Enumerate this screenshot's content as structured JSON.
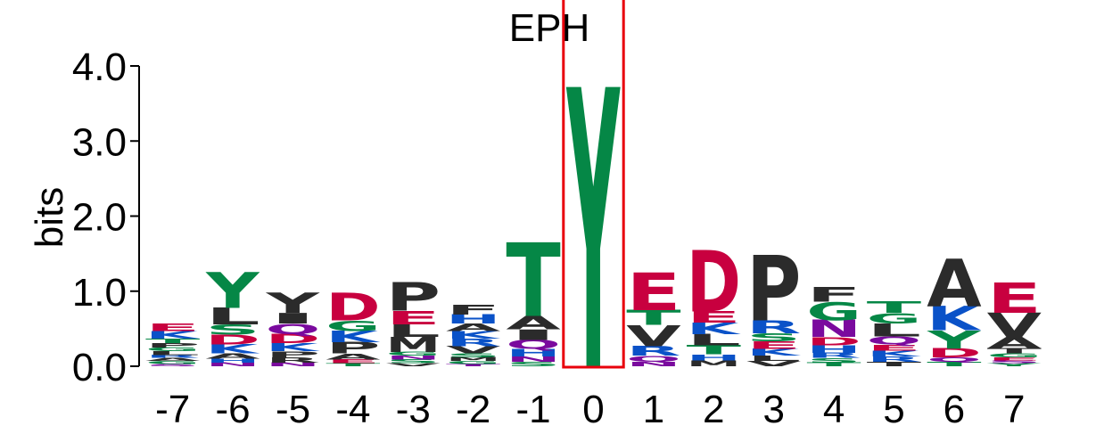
{
  "chart_data": {
    "type": "sequence-logo",
    "title": "EPH",
    "ylabel": "bits",
    "ylim": [
      0,
      4
    ],
    "y_ticks": [
      "0.0",
      "1.0",
      "2.0",
      "3.0",
      "4.0"
    ],
    "highlighted_position": 0,
    "highlight_color": "#e8000b",
    "colors": {
      "green": "#058746",
      "red": "#c8003f",
      "blue": "#0a52c8",
      "purple": "#7a0a9e",
      "black": "#2b2b2b"
    },
    "positions": [
      {
        "label": "-7",
        "stack": [
          {
            "letter": "S",
            "height": 0.03,
            "color": "purple"
          },
          {
            "letter": "G",
            "height": 0.04,
            "color": "green"
          },
          {
            "letter": "A",
            "height": 0.04,
            "color": "black"
          },
          {
            "letter": "R",
            "height": 0.04,
            "color": "blue"
          },
          {
            "letter": "L",
            "height": 0.05,
            "color": "black"
          },
          {
            "letter": "G",
            "height": 0.05,
            "color": "green"
          },
          {
            "letter": "P",
            "height": 0.06,
            "color": "black"
          },
          {
            "letter": "T",
            "height": 0.06,
            "color": "green"
          },
          {
            "letter": "K",
            "height": 0.1,
            "color": "blue"
          },
          {
            "letter": "E",
            "height": 0.1,
            "color": "red"
          }
        ]
      },
      {
        "label": "-6",
        "stack": [
          {
            "letter": "N",
            "height": 0.05,
            "color": "purple"
          },
          {
            "letter": "H",
            "height": 0.05,
            "color": "blue"
          },
          {
            "letter": "A",
            "height": 0.07,
            "color": "black"
          },
          {
            "letter": "K",
            "height": 0.12,
            "color": "blue"
          },
          {
            "letter": "D",
            "height": 0.13,
            "color": "red"
          },
          {
            "letter": "S",
            "height": 0.14,
            "color": "green"
          },
          {
            "letter": "L",
            "height": 0.22,
            "color": "black"
          },
          {
            "letter": "Y",
            "height": 0.48,
            "color": "green"
          }
        ]
      },
      {
        "label": "-5",
        "stack": [
          {
            "letter": "N",
            "height": 0.05,
            "color": "purple"
          },
          {
            "letter": "R",
            "height": 0.07,
            "color": "black"
          },
          {
            "letter": "P",
            "height": 0.08,
            "color": "black"
          },
          {
            "letter": "K",
            "height": 0.11,
            "color": "blue"
          },
          {
            "letter": "D",
            "height": 0.12,
            "color": "red"
          },
          {
            "letter": "Q",
            "height": 0.14,
            "color": "purple"
          },
          {
            "letter": "I",
            "height": 0.14,
            "color": "black"
          },
          {
            "letter": "Y",
            "height": 0.27,
            "color": "black"
          }
        ]
      },
      {
        "label": "-4",
        "stack": [
          {
            "letter": "T",
            "height": 0.04,
            "color": "green"
          },
          {
            "letter": "E",
            "height": 0.05,
            "color": "red"
          },
          {
            "letter": "A",
            "height": 0.08,
            "color": "black"
          },
          {
            "letter": "P",
            "height": 0.15,
            "color": "black"
          },
          {
            "letter": "K",
            "height": 0.15,
            "color": "blue"
          },
          {
            "letter": "G",
            "height": 0.14,
            "color": "green"
          },
          {
            "letter": "D",
            "height": 0.37,
            "color": "red"
          }
        ]
      },
      {
        "label": "-3",
        "stack": [
          {
            "letter": "V",
            "height": 0.04,
            "color": "black"
          },
          {
            "letter": "S",
            "height": 0.05,
            "color": "green"
          },
          {
            "letter": "N",
            "height": 0.05,
            "color": "purple"
          },
          {
            "letter": "G",
            "height": 0.05,
            "color": "green"
          },
          {
            "letter": "M",
            "height": 0.2,
            "color": "black"
          },
          {
            "letter": "L",
            "height": 0.17,
            "color": "black"
          },
          {
            "letter": "E",
            "height": 0.18,
            "color": "red"
          },
          {
            "letter": "P",
            "height": 0.38,
            "color": "black"
          }
        ]
      },
      {
        "label": "-2",
        "stack": [
          {
            "letter": "T",
            "height": 0.03,
            "color": "purple"
          },
          {
            "letter": "G",
            "height": 0.04,
            "color": "green"
          },
          {
            "letter": "M",
            "height": 0.05,
            "color": "black"
          },
          {
            "letter": "S",
            "height": 0.05,
            "color": "green"
          },
          {
            "letter": "V",
            "height": 0.1,
            "color": "black"
          },
          {
            "letter": "R",
            "height": 0.1,
            "color": "blue"
          },
          {
            "letter": "K",
            "height": 0.1,
            "color": "blue"
          },
          {
            "letter": "A",
            "height": 0.1,
            "color": "black"
          },
          {
            "letter": "H",
            "height": 0.12,
            "color": "blue"
          },
          {
            "letter": "F",
            "height": 0.13,
            "color": "black"
          }
        ]
      },
      {
        "label": "-1",
        "stack": [
          {
            "letter": "S",
            "height": 0.06,
            "color": "green"
          },
          {
            "letter": "N",
            "height": 0.07,
            "color": "purple"
          },
          {
            "letter": "H",
            "height": 0.1,
            "color": "blue"
          },
          {
            "letter": "Q",
            "height": 0.12,
            "color": "purple"
          },
          {
            "letter": "I",
            "height": 0.14,
            "color": "black"
          },
          {
            "letter": "A",
            "height": 0.18,
            "color": "black"
          },
          {
            "letter": "T",
            "height": 0.98,
            "color": "green"
          }
        ]
      },
      {
        "label": "0",
        "stack": [
          {
            "letter": "Y",
            "height": 3.72,
            "color": "green"
          }
        ]
      },
      {
        "label": "1",
        "stack": [
          {
            "letter": "N",
            "height": 0.06,
            "color": "purple"
          },
          {
            "letter": "Q",
            "height": 0.08,
            "color": "purple"
          },
          {
            "letter": "R",
            "height": 0.13,
            "color": "blue"
          },
          {
            "letter": "V",
            "height": 0.28,
            "color": "black"
          },
          {
            "letter": "T",
            "height": 0.2,
            "color": "green"
          },
          {
            "letter": "E",
            "height": 0.5,
            "color": "red"
          }
        ]
      },
      {
        "label": "2",
        "stack": [
          {
            "letter": "M",
            "height": 0.08,
            "color": "black"
          },
          {
            "letter": "H",
            "height": 0.08,
            "color": "blue"
          },
          {
            "letter": "T",
            "height": 0.12,
            "color": "green"
          },
          {
            "letter": "L",
            "height": 0.15,
            "color": "black"
          },
          {
            "letter": "K",
            "height": 0.15,
            "color": "blue"
          },
          {
            "letter": "E",
            "height": 0.15,
            "color": "red"
          },
          {
            "letter": "D",
            "height": 0.82,
            "color": "red"
          }
        ]
      },
      {
        "label": "3",
        "stack": [
          {
            "letter": "V",
            "height": 0.07,
            "color": "black"
          },
          {
            "letter": "L",
            "height": 0.07,
            "color": "black"
          },
          {
            "letter": "K",
            "height": 0.09,
            "color": "blue"
          },
          {
            "letter": "E",
            "height": 0.1,
            "color": "red"
          },
          {
            "letter": "S",
            "height": 0.11,
            "color": "green"
          },
          {
            "letter": "R",
            "height": 0.17,
            "color": "blue"
          },
          {
            "letter": "P",
            "height": 0.87,
            "color": "black"
          }
        ]
      },
      {
        "label": "4",
        "stack": [
          {
            "letter": "T",
            "height": 0.05,
            "color": "green"
          },
          {
            "letter": "S",
            "height": 0.06,
            "color": "green"
          },
          {
            "letter": "R",
            "height": 0.07,
            "color": "blue"
          },
          {
            "letter": "H",
            "height": 0.1,
            "color": "blue"
          },
          {
            "letter": "D",
            "height": 0.11,
            "color": "red"
          },
          {
            "letter": "N",
            "height": 0.23,
            "color": "purple"
          },
          {
            "letter": "G",
            "height": 0.24,
            "color": "green"
          },
          {
            "letter": "F",
            "height": 0.19,
            "color": "black"
          }
        ]
      },
      {
        "label": "5",
        "stack": [
          {
            "letter": "T",
            "height": 0.06,
            "color": "black"
          },
          {
            "letter": "R",
            "height": 0.07,
            "color": "blue"
          },
          {
            "letter": "K",
            "height": 0.08,
            "color": "blue"
          },
          {
            "letter": "E",
            "height": 0.08,
            "color": "red"
          },
          {
            "letter": "Q",
            "height": 0.11,
            "color": "purple"
          },
          {
            "letter": "L",
            "height": 0.17,
            "color": "black"
          },
          {
            "letter": "G",
            "height": 0.14,
            "color": "green"
          },
          {
            "letter": "T",
            "height": 0.15,
            "color": "green"
          }
        ]
      },
      {
        "label": "6",
        "stack": [
          {
            "letter": "T",
            "height": 0.06,
            "color": "green"
          },
          {
            "letter": "Q",
            "height": 0.06,
            "color": "purple"
          },
          {
            "letter": "D",
            "height": 0.12,
            "color": "red"
          },
          {
            "letter": "Y",
            "height": 0.24,
            "color": "green"
          },
          {
            "letter": "K",
            "height": 0.32,
            "color": "blue"
          },
          {
            "letter": "A",
            "height": 0.63,
            "color": "black"
          }
        ]
      },
      {
        "label": "7",
        "stack": [
          {
            "letter": "Y",
            "height": 0.04,
            "color": "green"
          },
          {
            "letter": "S",
            "height": 0.04,
            "color": "purple"
          },
          {
            "letter": "E",
            "height": 0.04,
            "color": "red"
          },
          {
            "letter": "G",
            "height": 0.05,
            "color": "green"
          },
          {
            "letter": "T",
            "height": 0.07,
            "color": "black"
          },
          {
            "letter": "A",
            "height": 0.15,
            "color": "black"
          },
          {
            "letter": "V",
            "height": 0.32,
            "color": "black"
          },
          {
            "letter": "E",
            "height": 0.4,
            "color": "red"
          }
        ]
      }
    ]
  }
}
